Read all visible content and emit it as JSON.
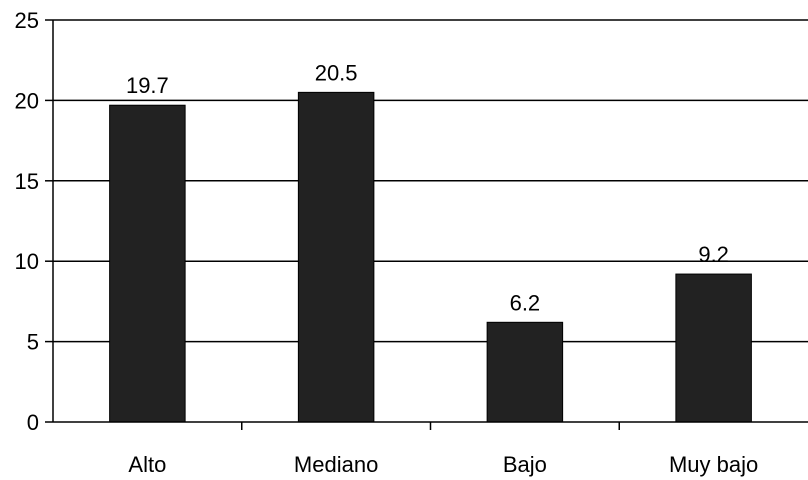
{
  "chart_data": {
    "type": "bar",
    "categories": [
      "Alto",
      "Mediano",
      "Bajo",
      "Muy bajo"
    ],
    "values": [
      19.7,
      20.5,
      6.2,
      9.2
    ],
    "data_labels": [
      "19.7",
      "20.5",
      "6.2",
      "9.2"
    ],
    "ylim": [
      0,
      25
    ],
    "y_ticks": [
      0,
      5,
      10,
      15,
      20,
      25
    ],
    "y_tick_labels": [
      "0",
      "5",
      "10",
      "15",
      "20",
      "25"
    ],
    "grid": true,
    "legend": false,
    "colors": {
      "bar": "#222222",
      "axis": "#000000",
      "background": "#ffffff"
    }
  }
}
